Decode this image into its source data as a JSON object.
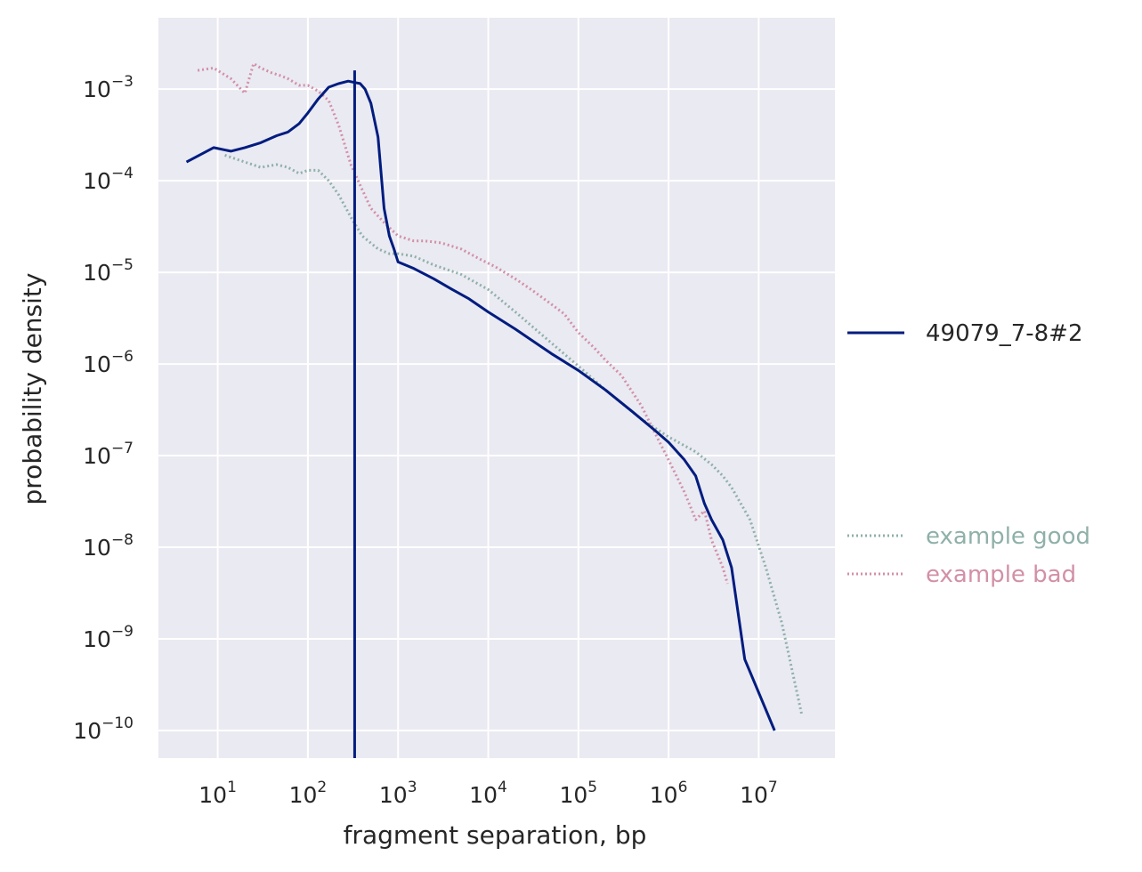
{
  "chart_data": {
    "type": "line",
    "xlabel": "fragment separation, bp",
    "ylabel": "probability density",
    "x_scale": "log",
    "y_scale": "log",
    "xlim": [
      2.2,
      70000000
    ],
    "ylim": [
      5e-11,
      0.006
    ],
    "grid": true,
    "x_ticks": [
      {
        "base": "10",
        "exp": "1",
        "value": 10
      },
      {
        "base": "10",
        "exp": "2",
        "value": 100
      },
      {
        "base": "10",
        "exp": "3",
        "value": 1000
      },
      {
        "base": "10",
        "exp": "4",
        "value": 10000
      },
      {
        "base": "10",
        "exp": "5",
        "value": 100000
      },
      {
        "base": "10",
        "exp": "6",
        "value": 1000000
      },
      {
        "base": "10",
        "exp": "7",
        "value": 10000000
      }
    ],
    "y_ticks": [
      {
        "base": "10",
        "exp": "−3",
        "value": 0.001
      },
      {
        "base": "10",
        "exp": "−4",
        "value": 0.0001
      },
      {
        "base": "10",
        "exp": "−5",
        "value": 1e-05
      },
      {
        "base": "10",
        "exp": "−6",
        "value": 1e-06
      },
      {
        "base": "10",
        "exp": "−7",
        "value": 1e-07
      },
      {
        "base": "10",
        "exp": "−8",
        "value": 1e-08
      },
      {
        "base": "10",
        "exp": "−9",
        "value": 1e-09
      },
      {
        "base": "10",
        "exp": "−10",
        "value": 1e-10
      }
    ],
    "vline": {
      "x": 330,
      "color": "#001c7f"
    },
    "series": [
      {
        "name": "49079_7-8#2",
        "color": "#001c7f",
        "style": "solid",
        "legend_position": "right-middle",
        "x": [
          4.5,
          9,
          14,
          20,
          30,
          45,
          60,
          80,
          100,
          130,
          170,
          220,
          280,
          330,
          380,
          430,
          500,
          600,
          700,
          800,
          900,
          1000,
          1500,
          2500,
          4000,
          6000,
          10000,
          20000,
          50000,
          100000,
          200000,
          400000,
          700000,
          1000000,
          1500000,
          2000000,
          2500000,
          3000000,
          4000000,
          5000000,
          7000000,
          15000000
        ],
        "y": [
          0.00016,
          0.00023,
          0.00021,
          0.00023,
          0.00026,
          0.00031,
          0.00034,
          0.00042,
          0.00055,
          0.00078,
          0.00105,
          0.00115,
          0.00122,
          0.00118,
          0.00115,
          0.001,
          0.0007,
          0.0003,
          5e-05,
          2.5e-05,
          1.8e-05,
          1.3e-05,
          1.1e-05,
          8.5e-06,
          6.5e-06,
          5.2e-06,
          3.7e-06,
          2.4e-06,
          1.3e-06,
          8.5e-07,
          5.2e-07,
          3e-07,
          1.9e-07,
          1.4e-07,
          9e-08,
          6e-08,
          3e-08,
          2e-08,
          1.2e-08,
          6e-09,
          6e-10,
          1e-10
        ]
      },
      {
        "name": "example good",
        "color": "#8fb0a9",
        "style": "dotted",
        "legend_position": "right-lower",
        "x": [
          12,
          20,
          30,
          45,
          60,
          80,
          100,
          130,
          170,
          220,
          300,
          400,
          600,
          800,
          1000,
          1500,
          2500,
          5000,
          10000,
          20000,
          50000,
          100000,
          200000,
          500000,
          1000000,
          2000000,
          3000000,
          4000000,
          5000000,
          8000000,
          12000000,
          18000000,
          30000000
        ],
        "y": [
          0.00019,
          0.00016,
          0.00014,
          0.00015,
          0.00014,
          0.00012,
          0.00013,
          0.00013,
          0.0001,
          7e-05,
          4e-05,
          2.5e-05,
          1.8e-05,
          1.6e-05,
          1.6e-05,
          1.5e-05,
          1.2e-05,
          9.5e-06,
          6.5e-06,
          3.7e-06,
          1.7e-06,
          9.5e-07,
          5.2e-07,
          2.5e-07,
          1.6e-07,
          1.1e-07,
          8e-08,
          6e-08,
          4.5e-08,
          2e-08,
          6e-09,
          1.5e-09,
          1.5e-10
        ]
      },
      {
        "name": "example bad",
        "color": "#d290a8",
        "style": "dotted",
        "legend_position": "right-lower",
        "x": [
          6,
          9,
          14,
          20,
          25,
          30,
          40,
          50,
          60,
          80,
          100,
          130,
          170,
          220,
          300,
          400,
          500,
          700,
          1000,
          1500,
          2000,
          3000,
          5000,
          8000,
          12000,
          20000,
          30000,
          50000,
          70000,
          100000,
          150000,
          200000,
          300000,
          500000,
          700000,
          1000000,
          1500000,
          2000000,
          2500000,
          3000000,
          4000000,
          4500000
        ],
        "y": [
          0.0016,
          0.0017,
          0.0013,
          0.0009,
          0.0019,
          0.0017,
          0.0015,
          0.0014,
          0.0013,
          0.0011,
          0.0011,
          0.00095,
          0.00075,
          0.0004,
          0.00015,
          8e-05,
          5e-05,
          3.5e-05,
          2.5e-05,
          2.2e-05,
          2.2e-05,
          2.1e-05,
          1.8e-05,
          1.4e-05,
          1.15e-05,
          8.5e-06,
          6.5e-06,
          4.5e-06,
          3.5e-06,
          2.2e-06,
          1.5e-06,
          1.1e-06,
          7.5e-07,
          3.5e-07,
          1.8e-07,
          9e-08,
          4e-08,
          2e-08,
          2.5e-08,
          1.2e-08,
          6e-09,
          4e-09
        ]
      }
    ]
  }
}
